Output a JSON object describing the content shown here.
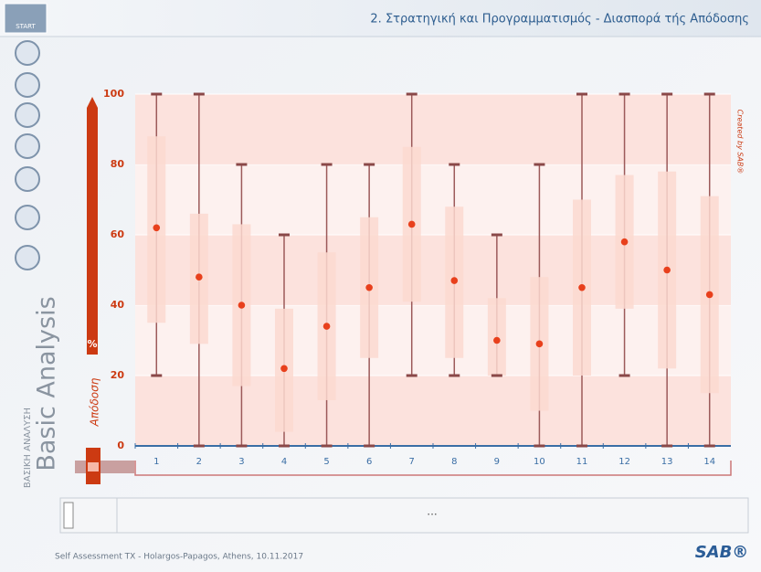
{
  "header": {
    "logo": "START",
    "title": "2. Στρατηγική και Προγραμματισμός - Διασπορά τής Απόδοσης"
  },
  "sidebar": {
    "title": "Basic Analysis",
    "subtitle": "ΒΑΣΙΚΗ ΑΝΑΛΥΣΗ"
  },
  "chart_data": {
    "type": "box",
    "y_label": "Απόδοση",
    "unit": "%",
    "credit": "Created by SAB®",
    "categories": [
      "1",
      "2",
      "3",
      "4",
      "5",
      "6",
      "7",
      "8",
      "9",
      "10",
      "11",
      "12",
      "13",
      "14"
    ],
    "min": [
      20,
      0,
      0,
      0,
      0,
      0,
      20,
      20,
      20,
      0,
      0,
      20,
      0,
      0
    ],
    "q1": [
      35,
      29,
      17,
      4,
      13,
      25,
      41,
      25,
      20,
      10,
      20,
      39,
      22,
      15
    ],
    "mean": [
      62,
      48,
      40,
      22,
      34,
      45,
      63,
      47,
      30,
      29,
      45,
      58,
      50,
      43
    ],
    "q3": [
      88,
      66,
      63,
      39,
      55,
      65,
      85,
      68,
      42,
      48,
      70,
      77,
      78,
      71
    ],
    "max": [
      100,
      100,
      80,
      60,
      80,
      80,
      100,
      80,
      60,
      80,
      100,
      100,
      100,
      100
    ],
    "box_color": "#fcd9d0",
    "mean_color": "#e8401c",
    "whisker_color": "#9c5a5a",
    "ylim": [
      0,
      100
    ],
    "yticks": [
      0,
      20,
      40,
      60,
      80,
      100
    ],
    "grid": true
  },
  "panel": {
    "text": "..."
  },
  "footer": {
    "text": "Self Assessment TX - Holargos-Papagos, Athens, 10.11.2017",
    "logo": "SAB®"
  }
}
